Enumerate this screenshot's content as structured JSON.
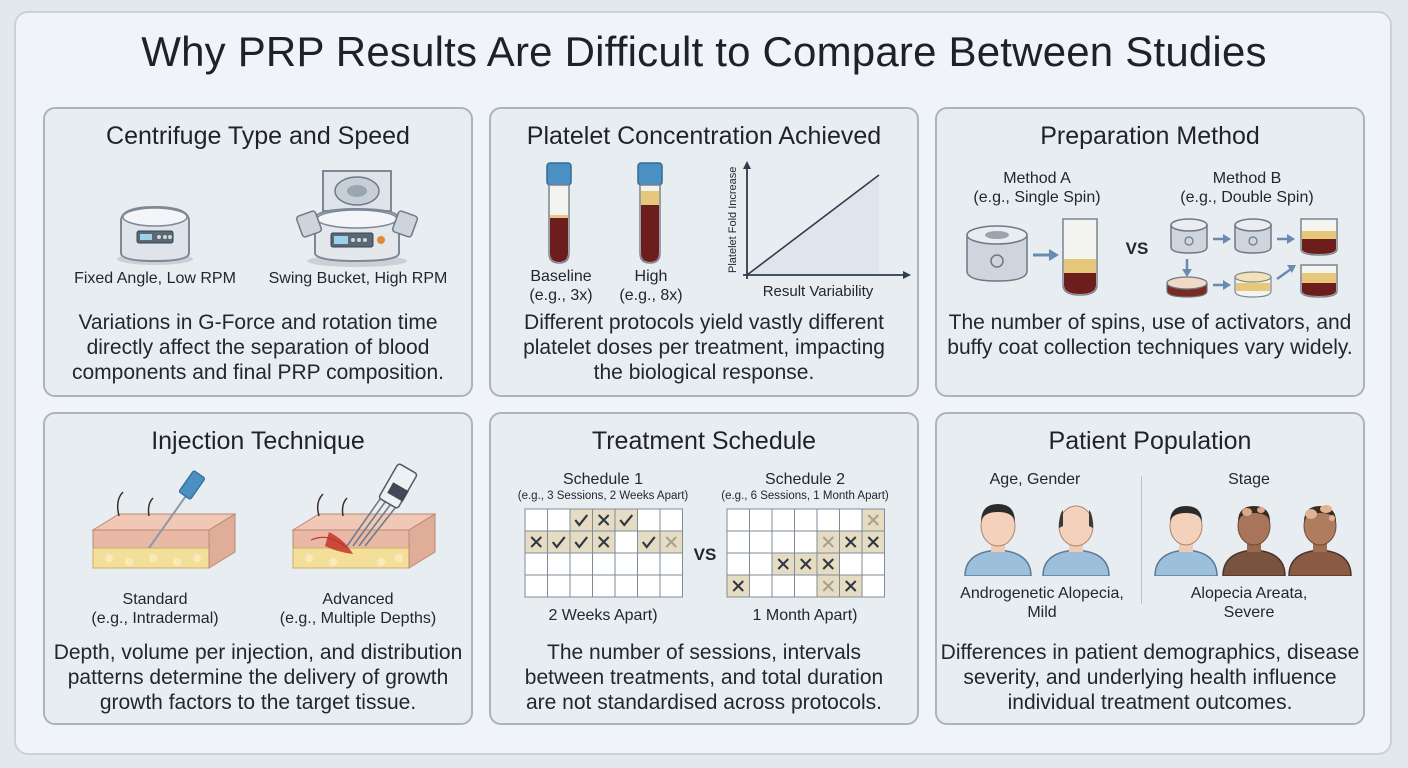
{
  "title": "Why PRP Results Are Difficult to Compare Between Studies",
  "panels": {
    "centrifuge": {
      "title": "Centrifuge Type and Speed",
      "label_a": "Fixed Angle, Low RPM",
      "label_b": "Swing Bucket, High RPM",
      "desc": [
        "Variations in G-Force and rotation time",
        "directly affect the separation of blood",
        "components and final PRP composition."
      ]
    },
    "platelet": {
      "title": "Platelet Concentration Achieved",
      "baseline_label": "Baseline",
      "baseline_sub": "(e.g., 3x)",
      "high_label": "High",
      "high_sub": "(e.g., 8x)",
      "y_axis": "Platelet Fold Increase",
      "x_axis": "Result Variability",
      "desc": [
        "Different protocols yield vastly different",
        "platelet doses per treatment, impacting",
        "the biological response."
      ]
    },
    "preparation": {
      "title": "Preparation Method",
      "method_a": "Method A",
      "method_a_sub": "(e.g., Single Spin)",
      "method_b": "Method B",
      "method_b_sub": "(e.g., Double Spin)",
      "vs": "VS",
      "desc": [
        "The number of spins, use of activators, and",
        "buffy coat collection techniques vary widely."
      ]
    },
    "injection": {
      "title": "Injection Technique",
      "standard": "Standard",
      "standard_sub": "(e.g., Intradermal)",
      "advanced": "Advanced",
      "advanced_sub": "(e.g., Multiple Depths)",
      "desc": [
        "Depth, volume per injection, and distribution",
        "patterns determine the delivery of growth",
        "growth factors to the target tissue."
      ]
    },
    "schedule": {
      "title": "Treatment Schedule",
      "schedule1": "Schedule 1",
      "schedule1_sub": "(e.g., 3 Sessions, 2 Weeks Apart)",
      "schedule1_caption": "2 Weeks Apart)",
      "schedule2": "Schedule 2",
      "schedule2_sub": "(e.g., 6 Sessions, 1 Month Apart)",
      "schedule2_caption": "1 Month Apart)",
      "vs": "VS",
      "grid1": [
        [
          "",
          "",
          "check",
          "x",
          "check",
          "",
          ""
        ],
        [
          "x",
          "check",
          "check",
          "x",
          "",
          "check",
          "xfaint"
        ],
        [
          "",
          "",
          "",
          "",
          "",
          "",
          ""
        ],
        [
          "",
          "",
          "",
          "",
          "",
          "",
          ""
        ]
      ],
      "grid2": [
        [
          "",
          "",
          "",
          "",
          "",
          "",
          "xfaint"
        ],
        [
          "",
          "",
          "",
          "",
          "xfaint",
          "x",
          "x"
        ],
        [
          "",
          "",
          "x",
          "x",
          "x",
          "",
          ""
        ],
        [
          "x",
          "",
          "",
          "",
          "xfaint",
          "x",
          ""
        ]
      ],
      "desc": [
        "The number of sessions, intervals",
        "between treatments, and total duration",
        "are not standardised across protocols."
      ]
    },
    "population": {
      "title": "Patient Population",
      "group_a_header": "Age, Gender",
      "group_b_header": "Stage",
      "group_a_label": [
        "Androgenetic Alopecia,",
        "Mild"
      ],
      "group_b_label": [
        "Alopecia Areata,",
        "Severe"
      ],
      "desc": [
        "Differences in patient demographics, disease",
        "severity, and underlying health influence",
        "individual treatment outcomes."
      ]
    }
  }
}
